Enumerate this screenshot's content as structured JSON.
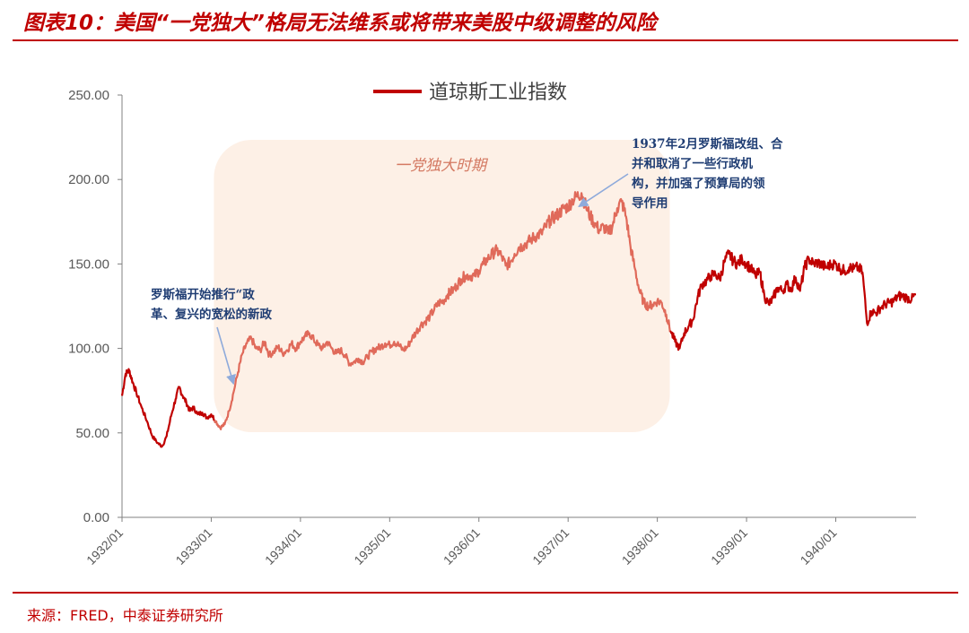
{
  "header": {
    "title": "图表10：美国“一党独大”格局无法维系或将带来美股中级调整的风险"
  },
  "footer": {
    "source": "来源：FRED，中泰证券研究所"
  },
  "colors": {
    "accent": "#c00000",
    "series_line": "#c00000",
    "highlight_line": "#e06a5a",
    "highlight_band": "#fdf0e6",
    "annotation_text": "#1f3d73",
    "annotation_arrow": "#8eaadb"
  },
  "chart_data": {
    "type": "line",
    "x_tick_labels": [
      "1932/01",
      "1933/01",
      "1934/01",
      "1935/01",
      "1936/01",
      "1937/01",
      "1938/01",
      "1939/01",
      "1940/01"
    ],
    "y_tick_labels": [
      "0.00",
      "50.00",
      "100.00",
      "150.00",
      "200.00",
      "250.00"
    ],
    "ylim": [
      0,
      250
    ],
    "xlim": [
      1932.0,
      1940.9
    ],
    "grid": false,
    "legend": {
      "position": "top-center",
      "label": "道琼斯工业指数"
    },
    "series": [
      {
        "name": "道琼斯工业指数",
        "points": [
          [
            1932.0,
            72
          ],
          [
            1932.04,
            85
          ],
          [
            1932.08,
            87
          ],
          [
            1932.12,
            80
          ],
          [
            1932.16,
            74
          ],
          [
            1932.22,
            65
          ],
          [
            1932.28,
            57
          ],
          [
            1932.34,
            48
          ],
          [
            1932.4,
            44
          ],
          [
            1932.45,
            42
          ],
          [
            1932.5,
            48
          ],
          [
            1932.55,
            60
          ],
          [
            1932.6,
            70
          ],
          [
            1932.64,
            77
          ],
          [
            1932.68,
            72
          ],
          [
            1932.72,
            68
          ],
          [
            1932.76,
            63
          ],
          [
            1932.8,
            65
          ],
          [
            1932.85,
            61
          ],
          [
            1932.9,
            62
          ],
          [
            1932.95,
            59
          ],
          [
            1933.0,
            61
          ],
          [
            1933.05,
            57
          ],
          [
            1933.1,
            53
          ],
          [
            1933.15,
            55
          ],
          [
            1933.2,
            63
          ],
          [
            1933.25,
            74
          ],
          [
            1933.3,
            86
          ],
          [
            1933.35,
            97
          ],
          [
            1933.4,
            103
          ],
          [
            1933.45,
            106
          ],
          [
            1933.5,
            100
          ],
          [
            1933.55,
            99
          ],
          [
            1933.6,
            104
          ],
          [
            1933.65,
            96
          ],
          [
            1933.7,
            98
          ],
          [
            1933.75,
            101
          ],
          [
            1933.8,
            97
          ],
          [
            1933.85,
            99
          ],
          [
            1933.9,
            103
          ],
          [
            1933.95,
            100
          ],
          [
            1934.0,
            104
          ],
          [
            1934.05,
            107
          ],
          [
            1934.1,
            109
          ],
          [
            1934.15,
            105
          ],
          [
            1934.2,
            102
          ],
          [
            1934.25,
            100
          ],
          [
            1934.3,
            104
          ],
          [
            1934.35,
            100
          ],
          [
            1934.4,
            97
          ],
          [
            1934.45,
            99
          ],
          [
            1934.5,
            96
          ],
          [
            1934.55,
            91
          ],
          [
            1934.6,
            92
          ],
          [
            1934.65,
            94
          ],
          [
            1934.7,
            92
          ],
          [
            1934.75,
            95
          ],
          [
            1934.8,
            98
          ],
          [
            1934.85,
            100
          ],
          [
            1934.9,
            101
          ],
          [
            1934.95,
            103
          ],
          [
            1935.0,
            102
          ],
          [
            1935.05,
            104
          ],
          [
            1935.1,
            102
          ],
          [
            1935.15,
            99
          ],
          [
            1935.2,
            101
          ],
          [
            1935.25,
            106
          ],
          [
            1935.3,
            110
          ],
          [
            1935.35,
            114
          ],
          [
            1935.4,
            116
          ],
          [
            1935.45,
            119
          ],
          [
            1935.5,
            123
          ],
          [
            1935.55,
            127
          ],
          [
            1935.6,
            128
          ],
          [
            1935.65,
            132
          ],
          [
            1935.7,
            134
          ],
          [
            1935.75,
            137
          ],
          [
            1935.8,
            141
          ],
          [
            1935.85,
            143
          ],
          [
            1935.9,
            143
          ],
          [
            1935.95,
            143
          ],
          [
            1936.0,
            146
          ],
          [
            1936.05,
            150
          ],
          [
            1936.1,
            153
          ],
          [
            1936.15,
            156
          ],
          [
            1936.2,
            158
          ],
          [
            1936.25,
            155
          ],
          [
            1936.3,
            149
          ],
          [
            1936.35,
            151
          ],
          [
            1936.4,
            156
          ],
          [
            1936.45,
            160
          ],
          [
            1936.5,
            161
          ],
          [
            1936.55,
            163
          ],
          [
            1936.6,
            165
          ],
          [
            1936.65,
            167
          ],
          [
            1936.7,
            168
          ],
          [
            1936.75,
            172
          ],
          [
            1936.8,
            176
          ],
          [
            1936.85,
            178
          ],
          [
            1936.9,
            180
          ],
          [
            1936.95,
            183
          ],
          [
            1937.0,
            184
          ],
          [
            1937.05,
            188
          ],
          [
            1937.1,
            190
          ],
          [
            1937.15,
            192
          ],
          [
            1937.2,
            184
          ],
          [
            1937.25,
            178
          ],
          [
            1937.3,
            174
          ],
          [
            1937.35,
            170
          ],
          [
            1937.4,
            172
          ],
          [
            1937.45,
            168
          ],
          [
            1937.5,
            173
          ],
          [
            1937.55,
            183
          ],
          [
            1937.6,
            187
          ],
          [
            1937.65,
            178
          ],
          [
            1937.7,
            160
          ],
          [
            1937.75,
            147
          ],
          [
            1937.8,
            134
          ],
          [
            1937.85,
            127
          ],
          [
            1937.9,
            125
          ],
          [
            1937.95,
            126
          ],
          [
            1938.0,
            128
          ],
          [
            1938.05,
            127
          ],
          [
            1938.1,
            120
          ],
          [
            1938.15,
            110
          ],
          [
            1938.2,
            104
          ],
          [
            1938.25,
            100
          ],
          [
            1938.3,
            109
          ],
          [
            1938.35,
            113
          ],
          [
            1938.4,
            117
          ],
          [
            1938.45,
            130
          ],
          [
            1938.5,
            138
          ],
          [
            1938.55,
            140
          ],
          [
            1938.6,
            143
          ],
          [
            1938.65,
            144
          ],
          [
            1938.7,
            141
          ],
          [
            1938.75,
            151
          ],
          [
            1938.8,
            156
          ],
          [
            1938.85,
            152
          ],
          [
            1938.9,
            150
          ],
          [
            1938.95,
            153
          ],
          [
            1939.0,
            150
          ],
          [
            1939.05,
            147
          ],
          [
            1939.1,
            143
          ],
          [
            1939.15,
            145
          ],
          [
            1939.2,
            131
          ],
          [
            1939.25,
            126
          ],
          [
            1939.3,
            130
          ],
          [
            1939.35,
            136
          ],
          [
            1939.4,
            134
          ],
          [
            1939.45,
            138
          ],
          [
            1939.5,
            135
          ],
          [
            1939.55,
            142
          ],
          [
            1939.6,
            134
          ],
          [
            1939.65,
            148
          ],
          [
            1939.7,
            153
          ],
          [
            1939.75,
            150
          ],
          [
            1939.8,
            151
          ],
          [
            1939.85,
            149
          ],
          [
            1939.9,
            148
          ],
          [
            1939.95,
            150
          ],
          [
            1940.0,
            150
          ],
          [
            1940.05,
            147
          ],
          [
            1940.1,
            146
          ],
          [
            1940.15,
            148
          ],
          [
            1940.2,
            147
          ],
          [
            1940.25,
            148
          ],
          [
            1940.3,
            145
          ],
          [
            1940.35,
            115
          ],
          [
            1940.4,
            122
          ],
          [
            1940.45,
            121
          ],
          [
            1940.5,
            124
          ],
          [
            1940.55,
            126
          ],
          [
            1940.6,
            127
          ],
          [
            1940.65,
            128
          ],
          [
            1940.7,
            131
          ],
          [
            1940.75,
            131
          ],
          [
            1940.8,
            130
          ],
          [
            1940.85,
            129
          ],
          [
            1940.9,
            132
          ]
        ]
      }
    ],
    "highlight_period": {
      "label": "一党独大时期",
      "x_range": [
        1933.03,
        1938.14
      ]
    },
    "annotations": [
      {
        "lines": [
          "罗斯福开始推行“政",
          "革、复兴的宽松的新政"
        ],
        "point": [
          1933.25,
          79
        ]
      },
      {
        "lines": [
          "1937年2月罗斯福改组、合",
          "并和取消了一些行政机",
          "构，并加强了预算局的领",
          "导作用"
        ],
        "point": [
          1937.12,
          184
        ]
      }
    ]
  }
}
